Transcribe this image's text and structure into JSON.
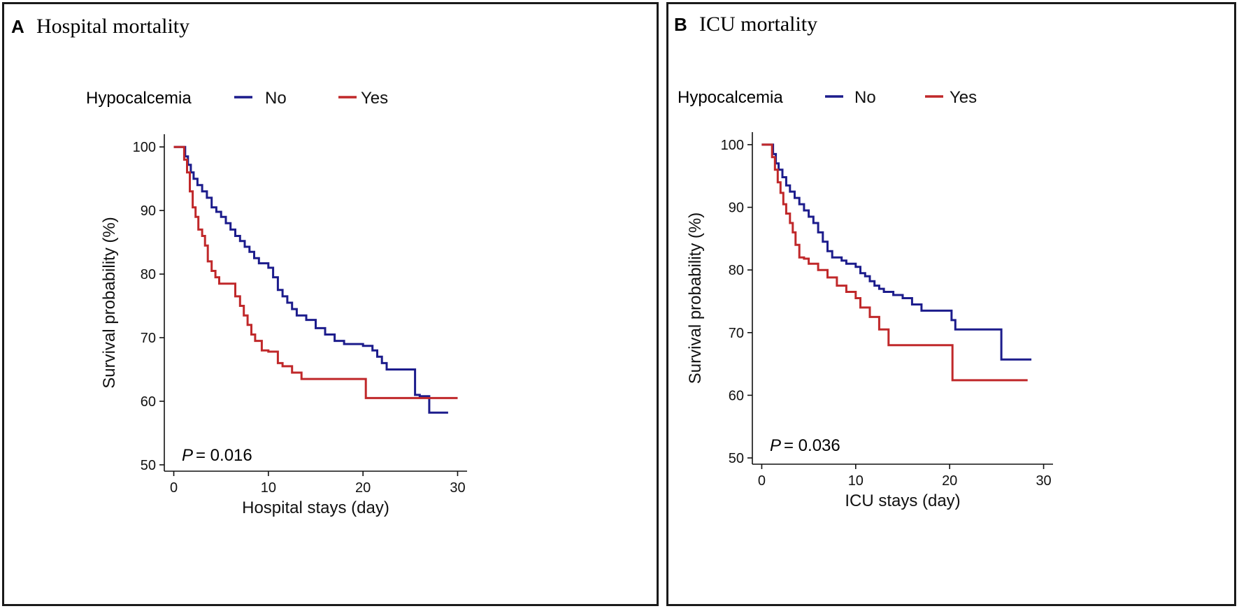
{
  "panels": [
    {
      "letter": "A",
      "title": "Hospital mortality",
      "legend_title": "Hypocalcemia",
      "p_label": "P",
      "p_value": "= 0.016"
    },
    {
      "letter": "B",
      "title": "ICU mortality",
      "legend_title": "Hypocalcemia",
      "p_label": "P",
      "p_value": "= 0.036"
    }
  ],
  "chart_data": [
    {
      "type": "line",
      "step": true,
      "title": "Hospital mortality",
      "xlabel": "Hospital stays (day)",
      "ylabel": "Survival probability (%)",
      "xlim": [
        -1,
        31
      ],
      "ylim": [
        49,
        102
      ],
      "xticks": [
        0,
        10,
        20,
        30
      ],
      "yticks": [
        50,
        60,
        70,
        80,
        90,
        100
      ],
      "legend_title": "Hypocalcemia",
      "legend_position": "top",
      "annotation": "P = 0.016",
      "series": [
        {
          "name": "No",
          "color": "#1c1c8c",
          "x": [
            0,
            1,
            1.2,
            1.5,
            1.8,
            2.1,
            2.5,
            3,
            3.5,
            4,
            4.5,
            5,
            5.5,
            6,
            6.5,
            7,
            7.5,
            8,
            8.5,
            9,
            9.5,
            10,
            10.5,
            11,
            11.5,
            12,
            12.5,
            13,
            14,
            15,
            16,
            17,
            18,
            19,
            20,
            21,
            21.5,
            22,
            22.5,
            23,
            24,
            25,
            25.5,
            26,
            27,
            29
          ],
          "y": [
            100,
            100,
            98.5,
            97.2,
            96,
            95,
            94,
            93,
            92,
            90.5,
            89.8,
            89,
            88,
            87,
            86,
            85.2,
            84.3,
            83.5,
            82.5,
            81.7,
            81.7,
            81,
            79.5,
            77.5,
            76.5,
            75.5,
            74.5,
            73.5,
            72.8,
            71.5,
            70.5,
            69.5,
            69,
            69,
            68.7,
            68,
            67,
            66,
            65,
            65,
            65,
            65,
            61,
            60.8,
            58.2,
            58.2
          ]
        },
        {
          "name": "Yes",
          "color": "#c0282a",
          "x": [
            0,
            1.1,
            1.4,
            1.7,
            2,
            2.3,
            2.6,
            3,
            3.3,
            3.6,
            4,
            4.4,
            4.8,
            5.3,
            6.5,
            7,
            7.4,
            7.8,
            8.2,
            8.6,
            9.3,
            10,
            11,
            11.5,
            12.5,
            13.5,
            20.3,
            30
          ],
          "y": [
            100,
            98,
            96,
            93,
            90.5,
            89,
            87,
            86,
            84.5,
            82,
            80.5,
            79.5,
            78.5,
            78.5,
            76.5,
            75,
            73.5,
            72,
            70.5,
            69.5,
            68,
            67.8,
            66,
            65.5,
            64.5,
            63.5,
            60.5,
            60.5
          ]
        }
      ]
    },
    {
      "type": "line",
      "step": true,
      "title": "ICU mortality",
      "xlabel": "ICU stays (day)",
      "ylabel": "Survival probability (%)",
      "xlim": [
        -1,
        31
      ],
      "ylim": [
        49,
        102
      ],
      "xticks": [
        0,
        10,
        20,
        30
      ],
      "yticks": [
        50,
        60,
        70,
        80,
        90,
        100
      ],
      "legend_title": "Hypocalcemia",
      "legend_position": "top",
      "annotation": "P = 0.036",
      "series": [
        {
          "name": "No",
          "color": "#1c1c8c",
          "x": [
            0,
            1,
            1.2,
            1.5,
            1.8,
            2.2,
            2.6,
            3,
            3.5,
            4,
            4.5,
            5,
            5.5,
            6,
            6.5,
            7,
            7.5,
            8,
            8.5,
            9,
            10,
            10.5,
            11,
            11.5,
            12,
            12.5,
            13,
            13.5,
            14,
            15,
            16,
            17,
            18,
            19,
            20.2,
            20.6,
            21,
            25.5,
            28.7
          ],
          "y": [
            100,
            100,
            98.5,
            97,
            96,
            94.8,
            93.5,
            92.5,
            91.5,
            90.5,
            89.5,
            88.5,
            87.5,
            86,
            84.5,
            83,
            82,
            82,
            81.5,
            81,
            80.5,
            79.5,
            79,
            78.2,
            77.5,
            77,
            76.5,
            76.5,
            76,
            75.5,
            74.5,
            73.5,
            73.5,
            73.5,
            72,
            70.5,
            70.5,
            65.7,
            65.7
          ]
        },
        {
          "name": "Yes",
          "color": "#c0282a",
          "x": [
            0,
            1.1,
            1.4,
            1.7,
            2,
            2.3,
            2.6,
            3,
            3.3,
            3.6,
            4,
            4.5,
            5,
            6,
            7,
            8,
            9,
            10,
            10.5,
            11.5,
            12.5,
            13.5,
            20.3,
            28.3
          ],
          "y": [
            100,
            98,
            96,
            94,
            92.3,
            90.5,
            89,
            87.5,
            86,
            84,
            82,
            81.8,
            81,
            80,
            78.8,
            77.5,
            76.5,
            75.5,
            74,
            72.5,
            70.5,
            68,
            62.4,
            62.4
          ]
        }
      ]
    }
  ]
}
